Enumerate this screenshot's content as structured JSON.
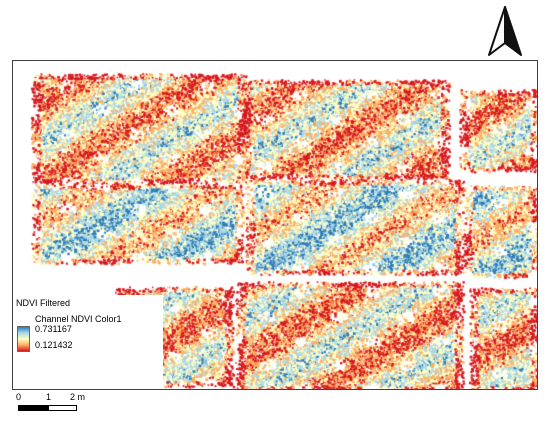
{
  "map": {
    "colors": {
      "high": "#2c7bb6",
      "mid_high": "#abd9e9",
      "mid": "#ffffbf",
      "mid_low": "#fdae61",
      "low": "#d7191c"
    }
  },
  "legend": {
    "layer_title": "NDVI Filtered",
    "band_name": "Channel NDVI Color1",
    "max_value": "0.731167",
    "min_value": "0.121432"
  },
  "scalebar": {
    "label_0": "0",
    "label_1": "1",
    "label_2": "2 m"
  },
  "north_arrow": {
    "icon": "north-arrow-icon"
  }
}
